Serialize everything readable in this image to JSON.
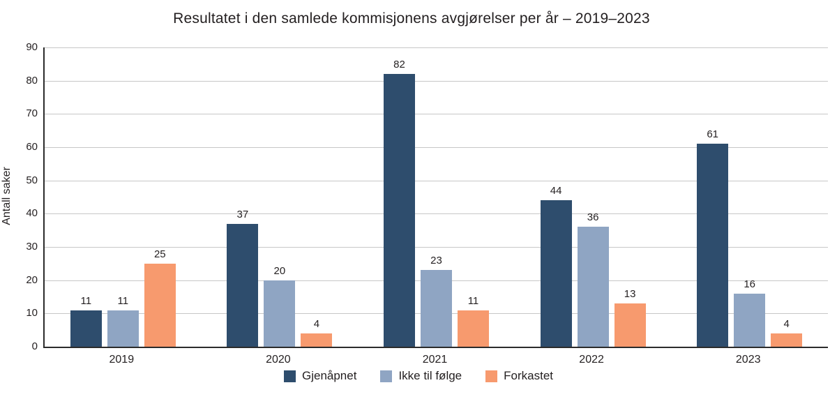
{
  "chart_data": {
    "type": "bar",
    "title": "Resultatet i den samlede kommisjonens avgjørelser per år – 2019–2023",
    "xlabel": "",
    "ylabel": "Antall saker",
    "categories": [
      "2019",
      "2020",
      "2021",
      "2022",
      "2023"
    ],
    "series": [
      {
        "name": "Gjenåpnet",
        "color": "#2e4d6d",
        "values": [
          11,
          37,
          82,
          44,
          61
        ]
      },
      {
        "name": "Ikke til følge",
        "color": "#8fa5c3",
        "values": [
          11,
          20,
          23,
          36,
          16
        ]
      },
      {
        "name": "Forkastet",
        "color": "#f79a6e",
        "values": [
          25,
          4,
          11,
          13,
          4
        ]
      }
    ],
    "ylim": [
      0,
      90
    ],
    "ytick_step": 10,
    "grid": true,
    "legend_position": "bottom"
  }
}
